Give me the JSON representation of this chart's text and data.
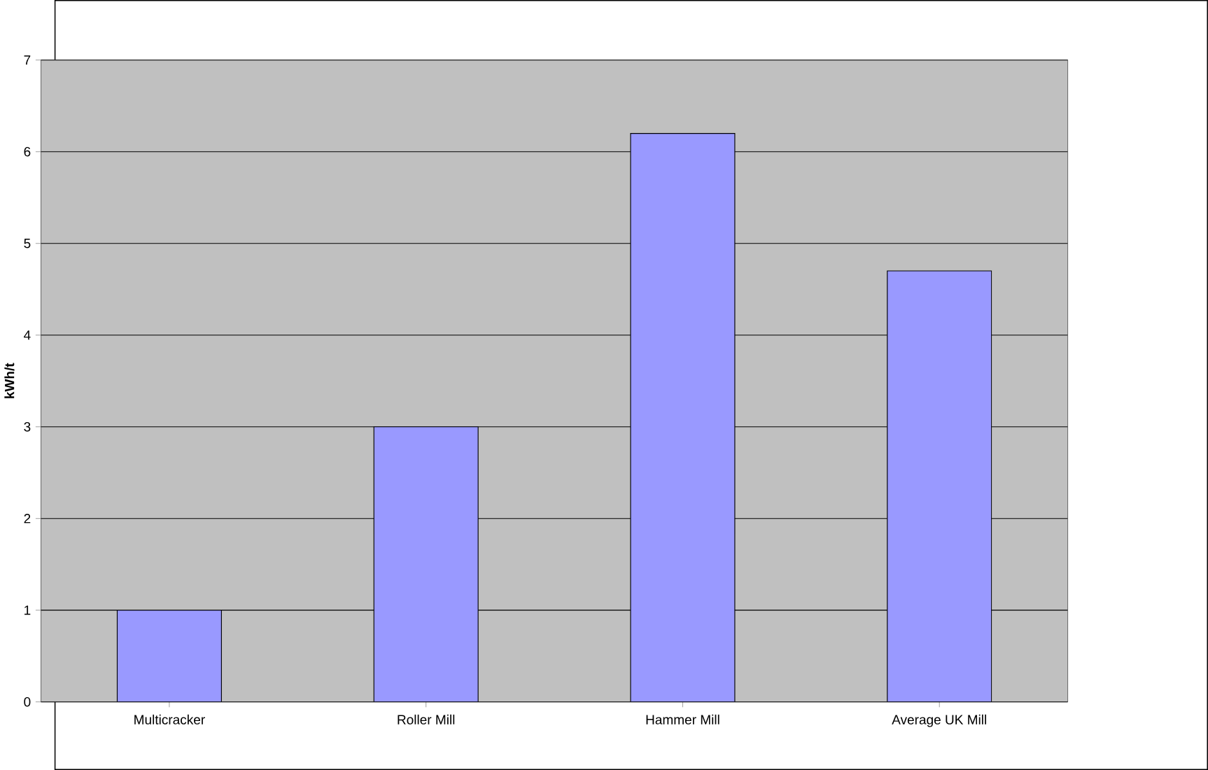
{
  "chart_data": {
    "type": "bar",
    "ylabel": "kWh/t",
    "categories": [
      "Multicracker",
      "Roller Mill",
      "Hammer Mill",
      "Average UK Mill"
    ],
    "values": [
      1,
      3,
      6.2,
      4.7
    ],
    "color": "#9999ff",
    "ylim": [
      0,
      7
    ],
    "yticks": [
      0,
      1,
      2,
      3,
      4,
      5,
      6,
      7
    ],
    "grid": "y"
  }
}
